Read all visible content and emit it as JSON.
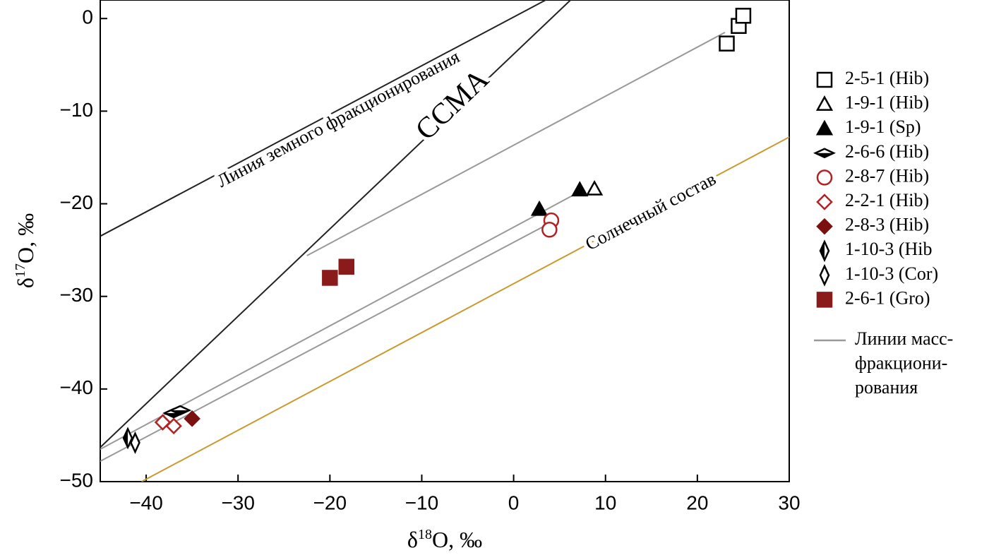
{
  "chart_data": {
    "type": "scatter",
    "xlabel": [
      "δ",
      "18",
      "O, ‰"
    ],
    "ylabel": [
      "δ",
      "17",
      "O, ‰"
    ],
    "xlim": [
      -45,
      30
    ],
    "ylim": [
      -50,
      2
    ],
    "xticks": [
      {
        "value": -40,
        "label": "−40"
      },
      {
        "value": -30,
        "label": "−30"
      },
      {
        "value": -20,
        "label": "−20"
      },
      {
        "value": -10,
        "label": "−10"
      },
      0,
      10,
      20,
      30
    ],
    "yticks": [
      0,
      {
        "value": -10,
        "label": "−10"
      },
      {
        "value": -20,
        "label": "−20"
      },
      {
        "value": -30,
        "label": "−30"
      },
      {
        "value": -40,
        "label": "−40"
      },
      {
        "value": -50,
        "label": "−50"
      }
    ],
    "series": [
      {
        "name": "2-5-1 (Hib)",
        "color": "#000000",
        "marker": "square",
        "fill": "none",
        "x": [
          23.2,
          24.5,
          25.0
        ],
        "y": [
          -2.7,
          -0.8,
          0.3
        ]
      },
      {
        "name": "1-9-1 (Hib)",
        "color": "#000000",
        "marker": "triangle",
        "fill": "none",
        "x": [
          8.8
        ],
        "y": [
          -18.4
        ]
      },
      {
        "name": "1-9-1 (Sp)",
        "color": "#000000",
        "marker": "triangle",
        "fill": "full",
        "x": [
          2.8,
          7.2
        ],
        "y": [
          -20.6,
          -18.5
        ]
      },
      {
        "name": "2-6-6 (Hib)",
        "color": "#000000",
        "marker": "hdiamond",
        "fill": "half",
        "x": [
          -37.0,
          -36.3
        ],
        "y": [
          -42.6,
          -42.3
        ]
      },
      {
        "name": "2-8-7 (Hib)",
        "color": "#b22222",
        "marker": "circle",
        "fill": "none",
        "x": [
          4.1,
          3.9
        ],
        "y": [
          -21.8,
          -22.8
        ]
      },
      {
        "name": "2-2-1 (Hib)",
        "color": "#b22222",
        "marker": "diamond",
        "fill": "none",
        "x": [
          -38.2,
          -37.0
        ],
        "y": [
          -43.6,
          -44.0
        ]
      },
      {
        "name": "2-8-3 (Hib)",
        "color": "#7a1010",
        "marker": "diamond",
        "fill": "full",
        "x": [
          -35.0
        ],
        "y": [
          -43.2
        ]
      },
      {
        "name": "1-10-3 (Hib",
        "color": "#000000",
        "marker": "vdiamond",
        "fill": "half",
        "x": [
          -42.0
        ],
        "y": [
          -45.3
        ]
      },
      {
        "name": "1-10-3 (Cor)",
        "color": "#000000",
        "marker": "vdiamond",
        "fill": "none",
        "x": [
          -41.2
        ],
        "y": [
          -45.8
        ]
      },
      {
        "name": "2-6-1 (Gro)",
        "color": "#8b1a1a",
        "marker": "square",
        "fill": "full",
        "x": [
          -20.0,
          -18.2
        ],
        "y": [
          -28.0,
          -26.8
        ]
      }
    ],
    "lines": [
      {
        "x": [
          -45,
          3.5
        ],
        "y": [
          -23.5,
          2
        ],
        "color": "#222222",
        "label": "Линия земного фракционирования",
        "label_at": [
          -19,
          -11
        ]
      },
      {
        "x": [
          -45,
          6.2
        ],
        "y": [
          -46.3,
          2
        ],
        "color": "#222222",
        "label": "CCMA",
        "label_at": [
          -6.5,
          -9.5
        ]
      },
      {
        "x": [
          -40.5,
          30
        ],
        "y": [
          -50,
          -12.8
        ],
        "color": "#c99a2e",
        "label": "Солнечный состав",
        "label_at": [
          15,
          -21
        ]
      },
      {
        "x": [
          -22.5,
          23
        ],
        "y": [
          -25.6,
          -1.5
        ],
        "color": "#999999"
      },
      {
        "x": [
          -45,
          7
        ],
        "y": [
          -46.5,
          -18.8
        ],
        "color": "#999999"
      },
      {
        "x": [
          -45,
          4.5
        ],
        "y": [
          -47.8,
          -21.8
        ],
        "color": "#999999"
      }
    ],
    "mass_lines_color": "#999999",
    "mass_lines_label": [
      "Линии масс-",
      "фракциони-",
      "рования"
    ]
  }
}
